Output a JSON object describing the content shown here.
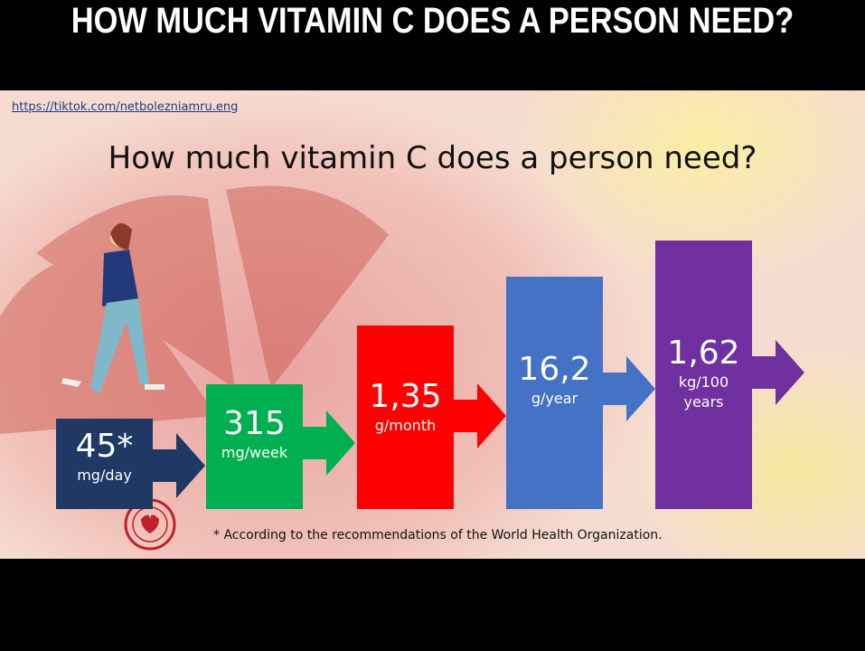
{
  "banner": {
    "title": "HOW MUCH VITAMIN C DOES A PERSON NEED?"
  },
  "slide": {
    "link": "https://tiktok.com/netbolezniamru.eng",
    "title": "How much vitamin C does a person need?",
    "steps": [
      {
        "value": "45*",
        "unit": "mg/day",
        "color": "#1f3864"
      },
      {
        "value": "315",
        "unit": "mg/week",
        "color": "#00b050"
      },
      {
        "value": "1,35",
        "unit": "g/month",
        "color": "#ff0000"
      },
      {
        "value": "16,2",
        "unit": "g/year",
        "color": "#4472c4"
      },
      {
        "value": "1,62",
        "unit": "kg/100 years",
        "color": "#7030a0"
      }
    ],
    "footnote": "* According to the recommendations of the World Health Organization."
  }
}
